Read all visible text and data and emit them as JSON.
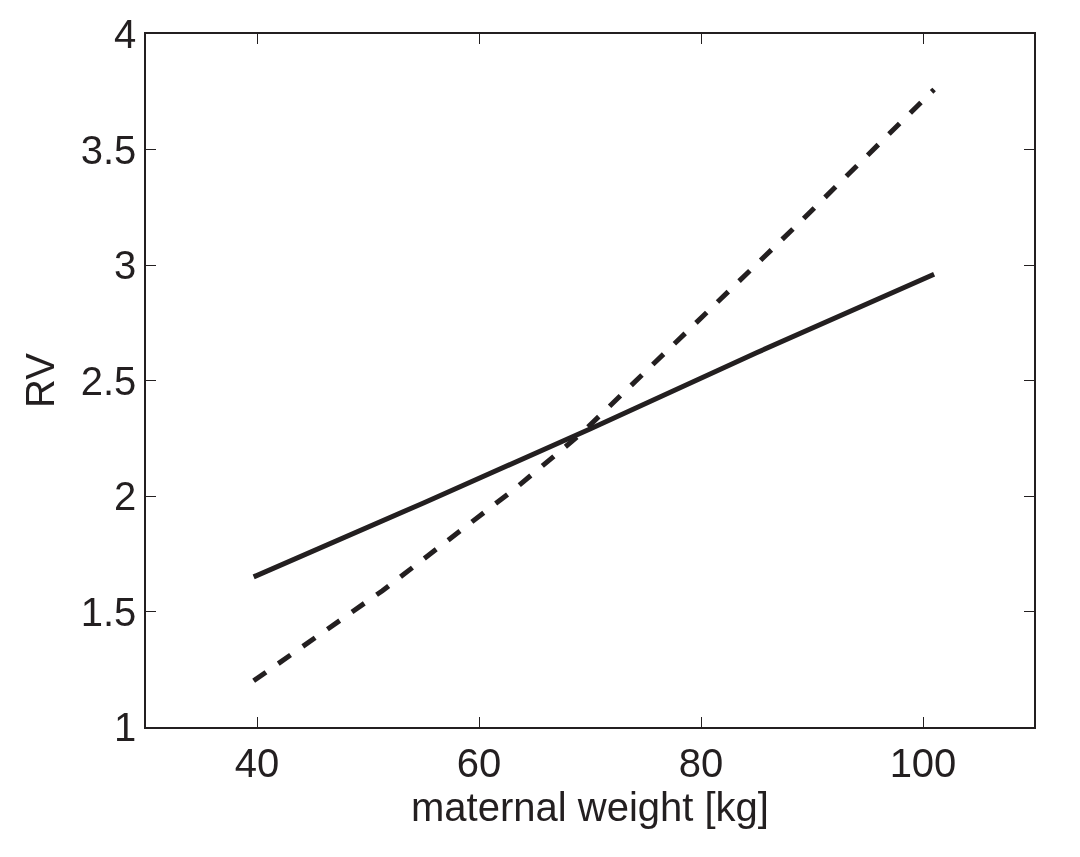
{
  "chart_data": {
    "type": "line",
    "xlabel": "maternal weight [kg]",
    "ylabel": "RV",
    "series": [
      {
        "color": "#231f20",
        "line_style": "solid",
        "x": [
          39.7,
          55,
          70,
          85,
          101
        ],
        "values": [
          1.65,
          1.97,
          2.29,
          2.62,
          2.96
        ]
      },
      {
        "color": "#231f20",
        "line_style": "dashed",
        "x": [
          39.7,
          51.3,
          63.2,
          69.2,
          78.7,
          88.8,
          101
        ],
        "values": [
          1.2,
          1.59,
          2.03,
          2.27,
          2.71,
          3.18,
          3.76
        ]
      }
    ],
    "xlim": [
      30,
      110
    ],
    "xticks": [
      40,
      60,
      80,
      100
    ],
    "ylim": [
      1,
      4
    ],
    "yticks": [
      1,
      1.5,
      2,
      2.5,
      3,
      3.5,
      4
    ],
    "marker": "none"
  }
}
